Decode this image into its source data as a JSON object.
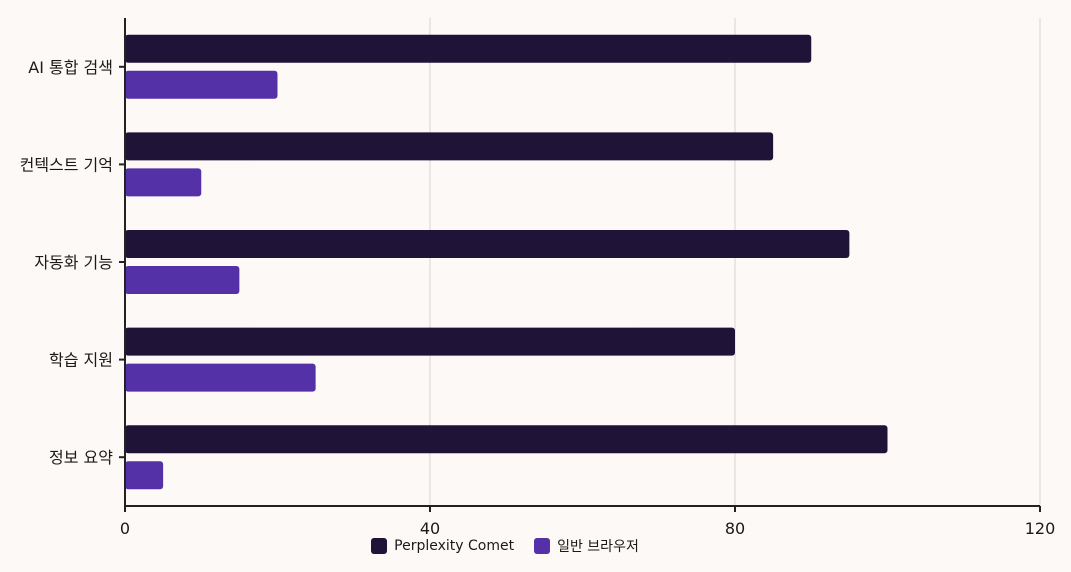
{
  "chart_data": {
    "type": "bar",
    "orientation": "horizontal",
    "categories": [
      "AI 통합 검색",
      "컨텍스트 기억",
      "자동화 기능",
      "학습 지원",
      "정보 요약"
    ],
    "series": [
      {
        "name": "Perplexity Comet",
        "values": [
          90,
          85,
          95,
          80,
          100
        ],
        "color": "#1f1438"
      },
      {
        "name": "일반 브라우저",
        "values": [
          20,
          10,
          15,
          25,
          5
        ],
        "color": "#5531a8"
      }
    ],
    "xlim": [
      0,
      120
    ],
    "xticks": [
      0,
      40,
      80,
      120
    ],
    "grid": true,
    "legend_position": "bottom"
  }
}
